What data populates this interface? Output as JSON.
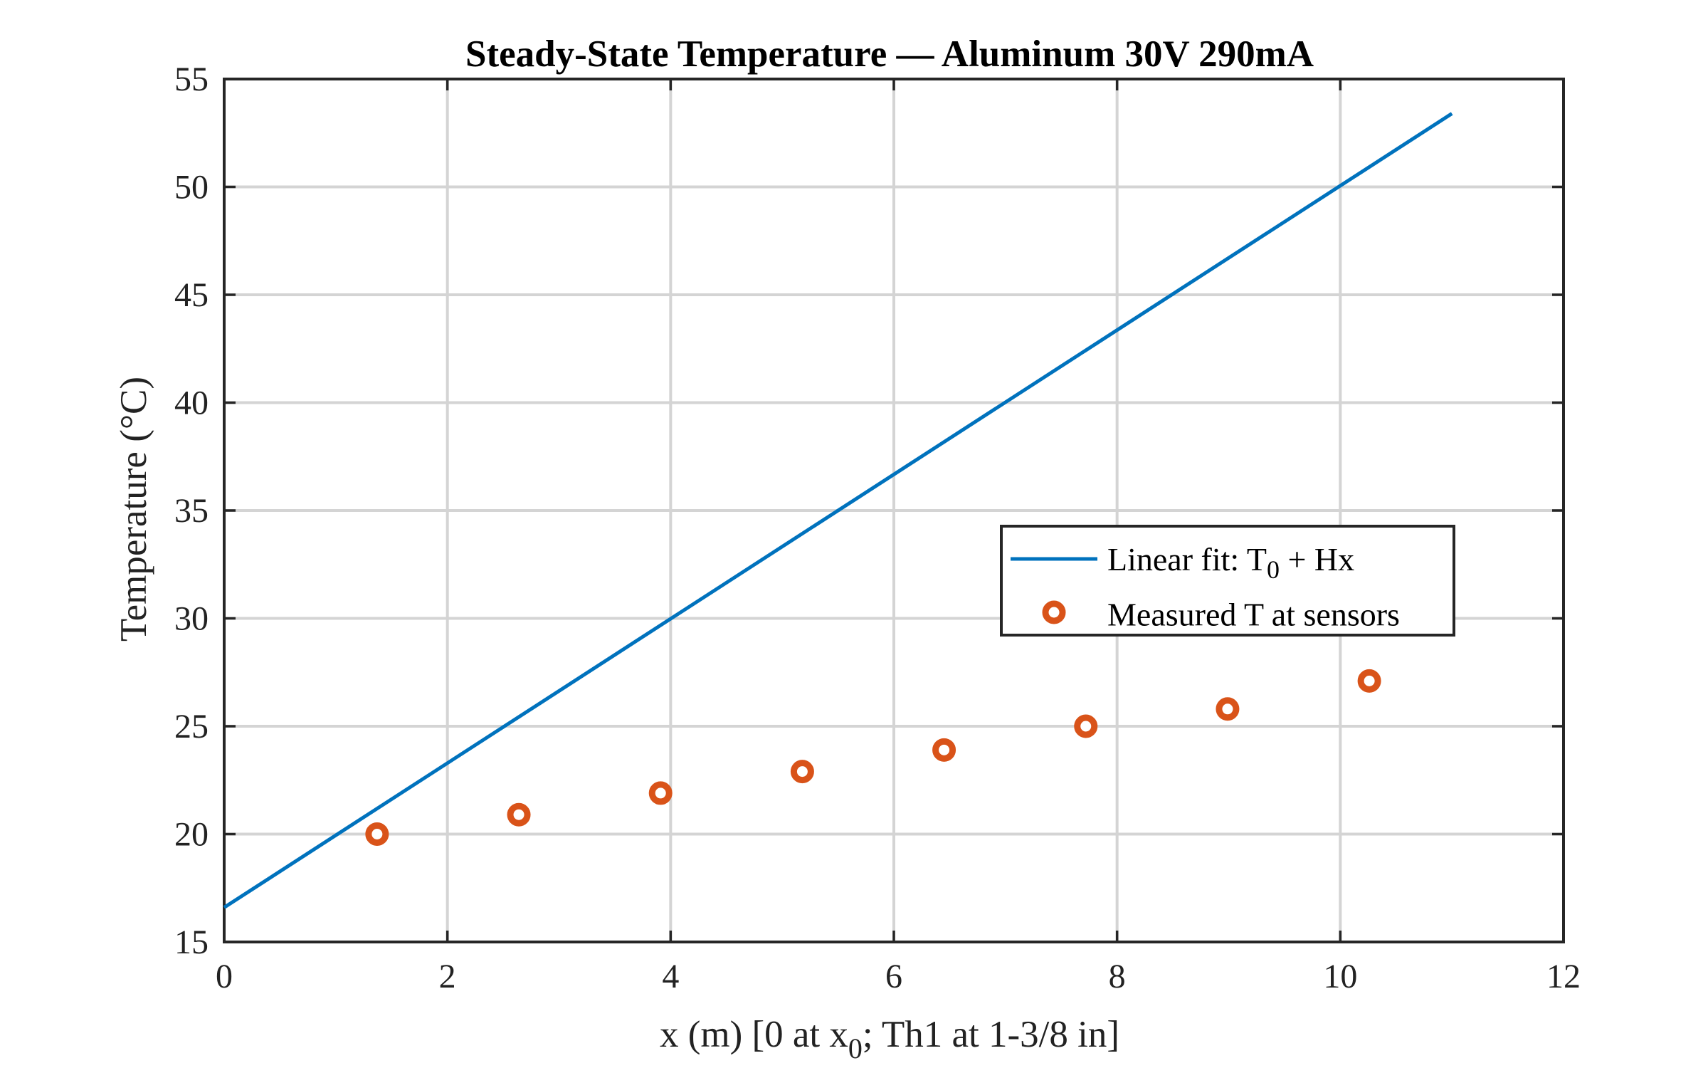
{
  "chart_data": {
    "type": "line",
    "title": "Steady-State Temperature — Aluminum 30V 290mA",
    "xlabel": {
      "main": "x (m) [0 at x",
      "sub": "0",
      "rest": "; Th1 at 1-3/8 in]"
    },
    "ylabel": "Temperature (°C)",
    "xlim": [
      0,
      12
    ],
    "ylim": [
      15,
      55
    ],
    "x_ticks": [
      "0",
      "2",
      "4",
      "6",
      "8",
      "10",
      "12"
    ],
    "y_ticks": [
      "15",
      "20",
      "25",
      "30",
      "35",
      "40",
      "45",
      "50",
      "55"
    ],
    "grid": true,
    "legend_position": "center-right",
    "series": [
      {
        "name": "Linear fit: T0 + Hx",
        "name_parts": {
          "main": "Linear fit: T",
          "sub": "0",
          "rest": " + Hx"
        },
        "type": "line",
        "color": "#0072BD",
        "x": [
          0,
          11
        ],
        "y": [
          16.6,
          53.4
        ]
      },
      {
        "name": "Measured T at sensors",
        "type": "scatter",
        "color": "#D95319",
        "x": [
          1.37,
          2.64,
          3.91,
          5.18,
          6.45,
          7.72,
          8.99,
          10.26
        ],
        "y": [
          20.0,
          20.9,
          21.9,
          22.9,
          23.9,
          25.0,
          25.8,
          27.1
        ]
      }
    ]
  }
}
